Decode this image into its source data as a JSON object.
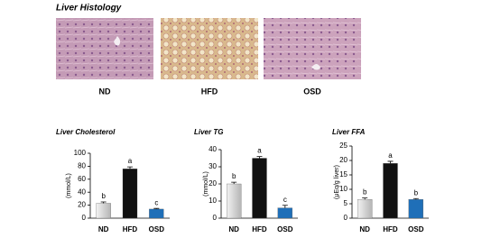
{
  "histology": {
    "title": "Liver Histology",
    "labels": [
      "ND",
      "HFD",
      "OSD"
    ]
  },
  "chart_data": [
    {
      "type": "bar",
      "title": "Liver Cholesterol",
      "ylabel": "(mmol/L)",
      "categories": [
        "ND",
        "HFD",
        "OSD"
      ],
      "values": [
        23,
        76,
        14
      ],
      "errors": [
        2,
        3,
        1
      ],
      "annotations": [
        "b",
        "a",
        "c"
      ],
      "colors": [
        "#cfcfcf",
        "#111111",
        "#1f6fb8"
      ],
      "ylim": [
        0,
        100
      ],
      "yticks": [
        0,
        20,
        40,
        60,
        80,
        100
      ]
    },
    {
      "type": "bar",
      "title": "Liver TG",
      "ylabel": "(mmol/L)",
      "categories": [
        "ND",
        "HFD",
        "OSD"
      ],
      "values": [
        20,
        35,
        6
      ],
      "errors": [
        1,
        1,
        1.5
      ],
      "annotations": [
        "b",
        "a",
        "c"
      ],
      "colors": [
        "#cfcfcf",
        "#111111",
        "#1f6fb8"
      ],
      "ylim": [
        0,
        40
      ],
      "yticks": [
        0,
        10,
        20,
        30,
        40
      ]
    },
    {
      "type": "bar",
      "title": "Liver FFA",
      "ylabel": "(μEq/g liver)",
      "categories": [
        "ND",
        "HFD",
        "OSD"
      ],
      "values": [
        6.5,
        19,
        6.5
      ],
      "errors": [
        0.5,
        0.7,
        0.3
      ],
      "annotations": [
        "b",
        "a",
        "b"
      ],
      "colors": [
        "#cfcfcf",
        "#111111",
        "#1f6fb8"
      ],
      "ylim": [
        0,
        25
      ],
      "yticks": [
        0,
        5,
        10,
        15,
        20,
        25
      ]
    }
  ]
}
